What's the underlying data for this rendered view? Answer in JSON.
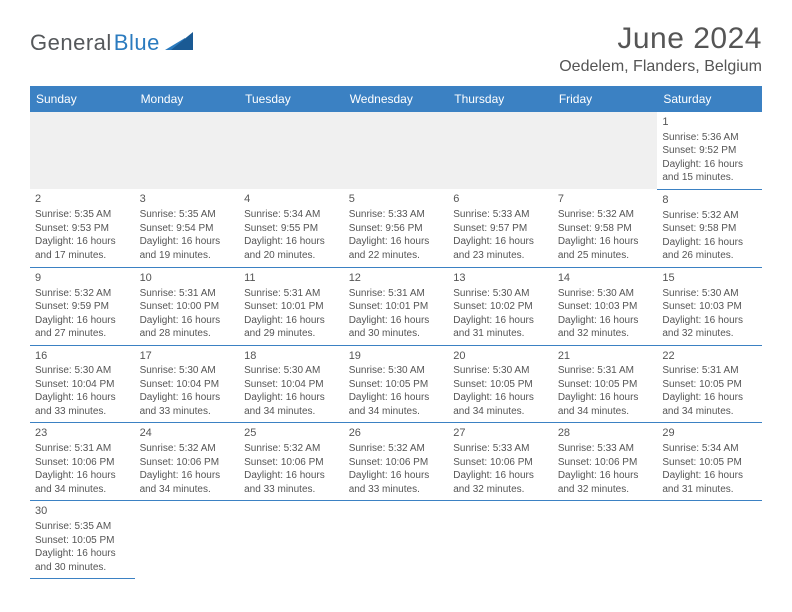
{
  "logo": {
    "dark": "General",
    "blue": "Blue"
  },
  "title": "June 2024",
  "location": "Oedelem, Flanders, Belgium",
  "colors": {
    "header_bg": "#3b81c3",
    "header_text": "#ffffff",
    "row_border": "#3b81c3",
    "blank_bg": "#f0f0f0",
    "text": "#555555",
    "logo_dark": "#55585b",
    "logo_blue": "#2b7bbf"
  },
  "fonts": {
    "title_size": 30,
    "location_size": 16,
    "dayhead_size": 12,
    "cell_size": 10
  },
  "dayHeaders": [
    "Sunday",
    "Monday",
    "Tuesday",
    "Wednesday",
    "Thursday",
    "Friday",
    "Saturday"
  ],
  "weeks": [
    [
      null,
      null,
      null,
      null,
      null,
      null,
      {
        "n": "1",
        "sr": "Sunrise: 5:36 AM",
        "ss": "Sunset: 9:52 PM",
        "d1": "Daylight: 16 hours",
        "d2": "and 15 minutes."
      }
    ],
    [
      {
        "n": "2",
        "sr": "Sunrise: 5:35 AM",
        "ss": "Sunset: 9:53 PM",
        "d1": "Daylight: 16 hours",
        "d2": "and 17 minutes."
      },
      {
        "n": "3",
        "sr": "Sunrise: 5:35 AM",
        "ss": "Sunset: 9:54 PM",
        "d1": "Daylight: 16 hours",
        "d2": "and 19 minutes."
      },
      {
        "n": "4",
        "sr": "Sunrise: 5:34 AM",
        "ss": "Sunset: 9:55 PM",
        "d1": "Daylight: 16 hours",
        "d2": "and 20 minutes."
      },
      {
        "n": "5",
        "sr": "Sunrise: 5:33 AM",
        "ss": "Sunset: 9:56 PM",
        "d1": "Daylight: 16 hours",
        "d2": "and 22 minutes."
      },
      {
        "n": "6",
        "sr": "Sunrise: 5:33 AM",
        "ss": "Sunset: 9:57 PM",
        "d1": "Daylight: 16 hours",
        "d2": "and 23 minutes."
      },
      {
        "n": "7",
        "sr": "Sunrise: 5:32 AM",
        "ss": "Sunset: 9:58 PM",
        "d1": "Daylight: 16 hours",
        "d2": "and 25 minutes."
      },
      {
        "n": "8",
        "sr": "Sunrise: 5:32 AM",
        "ss": "Sunset: 9:58 PM",
        "d1": "Daylight: 16 hours",
        "d2": "and 26 minutes."
      }
    ],
    [
      {
        "n": "9",
        "sr": "Sunrise: 5:32 AM",
        "ss": "Sunset: 9:59 PM",
        "d1": "Daylight: 16 hours",
        "d2": "and 27 minutes."
      },
      {
        "n": "10",
        "sr": "Sunrise: 5:31 AM",
        "ss": "Sunset: 10:00 PM",
        "d1": "Daylight: 16 hours",
        "d2": "and 28 minutes."
      },
      {
        "n": "11",
        "sr": "Sunrise: 5:31 AM",
        "ss": "Sunset: 10:01 PM",
        "d1": "Daylight: 16 hours",
        "d2": "and 29 minutes."
      },
      {
        "n": "12",
        "sr": "Sunrise: 5:31 AM",
        "ss": "Sunset: 10:01 PM",
        "d1": "Daylight: 16 hours",
        "d2": "and 30 minutes."
      },
      {
        "n": "13",
        "sr": "Sunrise: 5:30 AM",
        "ss": "Sunset: 10:02 PM",
        "d1": "Daylight: 16 hours",
        "d2": "and 31 minutes."
      },
      {
        "n": "14",
        "sr": "Sunrise: 5:30 AM",
        "ss": "Sunset: 10:03 PM",
        "d1": "Daylight: 16 hours",
        "d2": "and 32 minutes."
      },
      {
        "n": "15",
        "sr": "Sunrise: 5:30 AM",
        "ss": "Sunset: 10:03 PM",
        "d1": "Daylight: 16 hours",
        "d2": "and 32 minutes."
      }
    ],
    [
      {
        "n": "16",
        "sr": "Sunrise: 5:30 AM",
        "ss": "Sunset: 10:04 PM",
        "d1": "Daylight: 16 hours",
        "d2": "and 33 minutes."
      },
      {
        "n": "17",
        "sr": "Sunrise: 5:30 AM",
        "ss": "Sunset: 10:04 PM",
        "d1": "Daylight: 16 hours",
        "d2": "and 33 minutes."
      },
      {
        "n": "18",
        "sr": "Sunrise: 5:30 AM",
        "ss": "Sunset: 10:04 PM",
        "d1": "Daylight: 16 hours",
        "d2": "and 34 minutes."
      },
      {
        "n": "19",
        "sr": "Sunrise: 5:30 AM",
        "ss": "Sunset: 10:05 PM",
        "d1": "Daylight: 16 hours",
        "d2": "and 34 minutes."
      },
      {
        "n": "20",
        "sr": "Sunrise: 5:30 AM",
        "ss": "Sunset: 10:05 PM",
        "d1": "Daylight: 16 hours",
        "d2": "and 34 minutes."
      },
      {
        "n": "21",
        "sr": "Sunrise: 5:31 AM",
        "ss": "Sunset: 10:05 PM",
        "d1": "Daylight: 16 hours",
        "d2": "and 34 minutes."
      },
      {
        "n": "22",
        "sr": "Sunrise: 5:31 AM",
        "ss": "Sunset: 10:05 PM",
        "d1": "Daylight: 16 hours",
        "d2": "and 34 minutes."
      }
    ],
    [
      {
        "n": "23",
        "sr": "Sunrise: 5:31 AM",
        "ss": "Sunset: 10:06 PM",
        "d1": "Daylight: 16 hours",
        "d2": "and 34 minutes."
      },
      {
        "n": "24",
        "sr": "Sunrise: 5:32 AM",
        "ss": "Sunset: 10:06 PM",
        "d1": "Daylight: 16 hours",
        "d2": "and 34 minutes."
      },
      {
        "n": "25",
        "sr": "Sunrise: 5:32 AM",
        "ss": "Sunset: 10:06 PM",
        "d1": "Daylight: 16 hours",
        "d2": "and 33 minutes."
      },
      {
        "n": "26",
        "sr": "Sunrise: 5:32 AM",
        "ss": "Sunset: 10:06 PM",
        "d1": "Daylight: 16 hours",
        "d2": "and 33 minutes."
      },
      {
        "n": "27",
        "sr": "Sunrise: 5:33 AM",
        "ss": "Sunset: 10:06 PM",
        "d1": "Daylight: 16 hours",
        "d2": "and 32 minutes."
      },
      {
        "n": "28",
        "sr": "Sunrise: 5:33 AM",
        "ss": "Sunset: 10:06 PM",
        "d1": "Daylight: 16 hours",
        "d2": "and 32 minutes."
      },
      {
        "n": "29",
        "sr": "Sunrise: 5:34 AM",
        "ss": "Sunset: 10:05 PM",
        "d1": "Daylight: 16 hours",
        "d2": "and 31 minutes."
      }
    ],
    [
      {
        "n": "30",
        "sr": "Sunrise: 5:35 AM",
        "ss": "Sunset: 10:05 PM",
        "d1": "Daylight: 16 hours",
        "d2": "and 30 minutes."
      },
      null,
      null,
      null,
      null,
      null,
      null
    ]
  ]
}
